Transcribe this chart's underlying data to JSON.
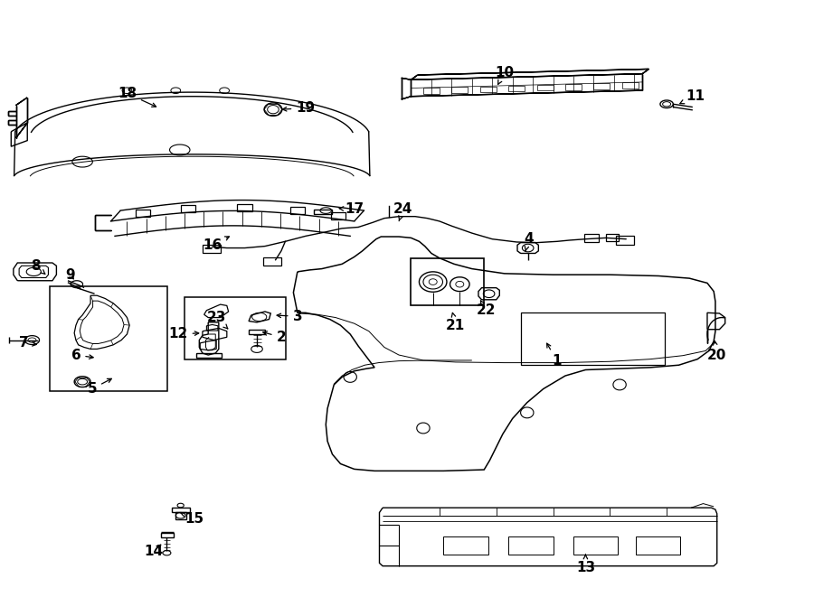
{
  "bg": "#ffffff",
  "lc": "#000000",
  "fw": 9.0,
  "fh": 6.61,
  "dpi": 100,
  "labels": {
    "1": [
      0.685,
      0.395,
      0.67,
      0.43
    ],
    "2": [
      0.345,
      0.435,
      0.318,
      0.445
    ],
    "3": [
      0.365,
      0.47,
      0.335,
      0.472
    ],
    "4": [
      0.65,
      0.6,
      0.645,
      0.575
    ],
    "5": [
      0.112,
      0.348,
      0.14,
      0.368
    ],
    "6": [
      0.092,
      0.405,
      0.118,
      0.4
    ],
    "7": [
      0.028,
      0.425,
      0.048,
      0.422
    ],
    "8": [
      0.042,
      0.555,
      0.055,
      0.54
    ],
    "9": [
      0.085,
      0.54,
      0.092,
      0.528
    ],
    "10": [
      0.62,
      0.88,
      0.61,
      0.855
    ],
    "11": [
      0.855,
      0.84,
      0.835,
      0.827
    ],
    "12": [
      0.218,
      0.44,
      0.248,
      0.442
    ],
    "13": [
      0.72,
      0.048,
      0.72,
      0.075
    ],
    "14": [
      0.188,
      0.075,
      0.2,
      0.09
    ],
    "15": [
      0.238,
      0.13,
      0.22,
      0.14
    ],
    "16": [
      0.26,
      0.59,
      0.285,
      0.607
    ],
    "17": [
      0.435,
      0.65,
      0.412,
      0.652
    ],
    "18": [
      0.155,
      0.845,
      0.195,
      0.82
    ],
    "19": [
      0.375,
      0.82,
      0.342,
      0.818
    ],
    "20": [
      0.882,
      0.405,
      0.878,
      0.435
    ],
    "21": [
      0.56,
      0.455,
      0.555,
      0.482
    ],
    "22": [
      0.598,
      0.48,
      0.59,
      0.498
    ],
    "23": [
      0.265,
      0.468,
      0.28,
      0.448
    ],
    "24": [
      0.495,
      0.65,
      0.49,
      0.63
    ]
  }
}
